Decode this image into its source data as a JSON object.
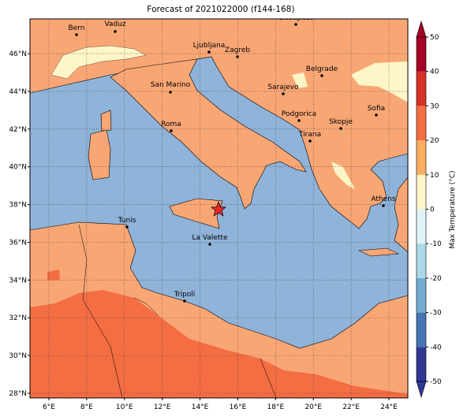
{
  "title": "Forecast of 2021022000 (f144-168)",
  "map": {
    "xlim": [
      5,
      25
    ],
    "ylim": [
      27.75,
      47.84
    ],
    "xticks": [
      {
        "value": 6,
        "label": "6°E"
      },
      {
        "value": 8,
        "label": "8°E"
      },
      {
        "value": 10,
        "label": "10°E"
      },
      {
        "value": 12,
        "label": "12°E"
      },
      {
        "value": 14,
        "label": "14°E"
      },
      {
        "value": 16,
        "label": "16°E"
      },
      {
        "value": 18,
        "label": "18°E"
      },
      {
        "value": 20,
        "label": "20°E"
      },
      {
        "value": 22,
        "label": "22°E"
      },
      {
        "value": 24,
        "label": "24°E"
      }
    ],
    "yticks": [
      {
        "value": 28,
        "label": "28°N"
      },
      {
        "value": 30,
        "label": "30°N"
      },
      {
        "value": 32,
        "label": "32°N"
      },
      {
        "value": 34,
        "label": "34°N"
      },
      {
        "value": 36,
        "label": "36°N"
      },
      {
        "value": 38,
        "label": "38°N"
      },
      {
        "value": 40,
        "label": "40°N"
      },
      {
        "value": 42,
        "label": "42°N"
      },
      {
        "value": 44,
        "label": "44°N"
      },
      {
        "value": 46,
        "label": "46°N"
      }
    ],
    "grid": true,
    "cities": [
      "Bern",
      "Vaduz",
      "Budapest",
      "Ljubljana",
      "Zagreb",
      "Belgrade",
      "San Marino",
      "Sarajevo",
      "Sofia",
      "Podgorica",
      "Skopje",
      "Roma",
      "Tirana",
      "Tunis",
      "Athens",
      "La Valette",
      "Tripoli"
    ]
  },
  "colorbar": {
    "label": "Max Temperature (°C)",
    "lim": [
      -50,
      50
    ],
    "ticks": [
      -50,
      -40,
      -30,
      -20,
      -10,
      0,
      10,
      20,
      30,
      40,
      50
    ],
    "colors": [
      "#313695",
      "#4575b4",
      "#74add1",
      "#abd9e9",
      "#e0f3f8",
      "#fef6c8",
      "#fdae61",
      "#f46d43",
      "#d73027",
      "#a50026"
    ]
  }
}
